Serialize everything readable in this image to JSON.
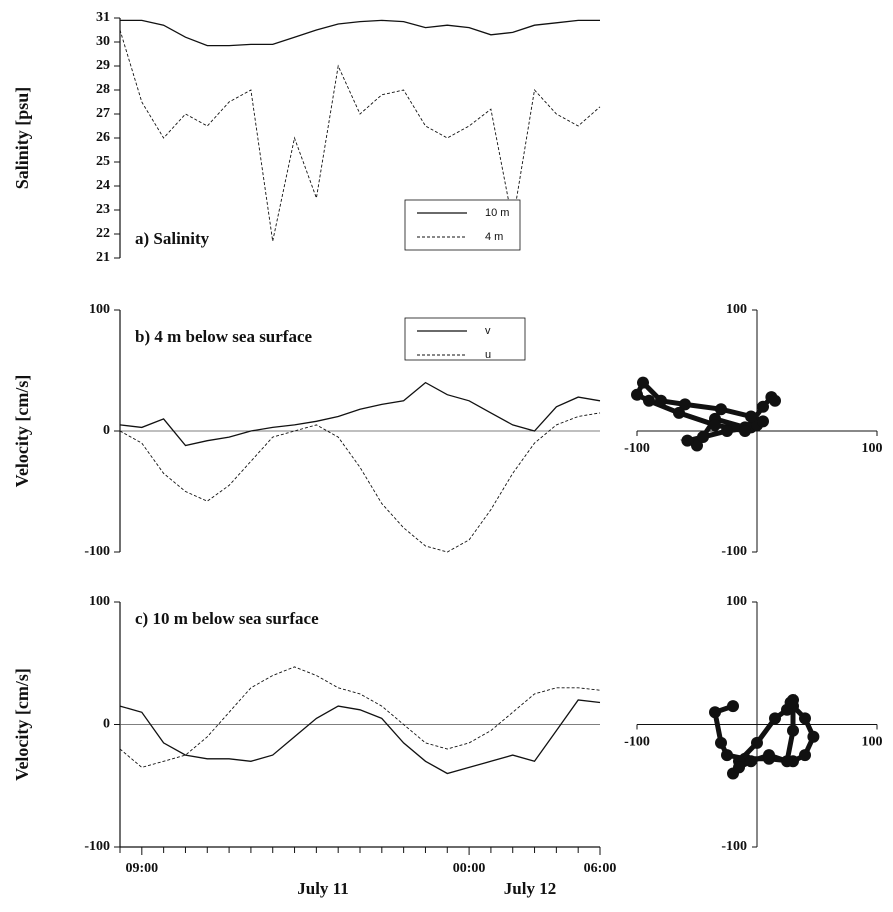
{
  "chart_data": [
    {
      "type": "line",
      "title": "a) Salinity",
      "ylabel": "Salinity [psu]",
      "x": [
        8,
        9,
        10,
        11,
        12,
        13,
        14,
        15,
        16,
        17,
        18,
        19,
        20,
        21,
        22,
        23,
        24,
        25,
        26,
        27,
        28,
        29,
        30
      ],
      "xlim": [
        8,
        30
      ],
      "ylim": [
        21,
        31
      ],
      "yticks": [
        21,
        22,
        23,
        24,
        25,
        26,
        27,
        28,
        29,
        30,
        31
      ],
      "series": [
        {
          "name": "10 m",
          "color": "#111111",
          "dash": false,
          "values": [
            30.9,
            30.9,
            30.7,
            30.2,
            29.85,
            29.85,
            29.9,
            29.9,
            30.2,
            30.5,
            30.75,
            30.85,
            30.9,
            30.85,
            30.6,
            30.7,
            30.6,
            30.3,
            30.4,
            30.7,
            30.8,
            30.9,
            30.9
          ]
        },
        {
          "name": "4 m",
          "color": "#111111",
          "dash": true,
          "values": [
            30.5,
            27.5,
            26,
            27,
            26.5,
            27.5,
            28,
            21.7,
            26,
            23.5,
            29,
            27,
            27.8,
            28,
            26.5,
            26,
            26.5,
            27.2,
            22.5,
            28,
            27,
            26.5,
            27.3
          ]
        }
      ]
    },
    {
      "type": "line",
      "title": "b) 4 m below sea surface",
      "ylabel": "Velocity [cm/s]",
      "x": [
        8,
        9,
        10,
        11,
        12,
        13,
        14,
        15,
        16,
        17,
        18,
        19,
        20,
        21,
        22,
        23,
        24,
        25,
        26,
        27,
        28,
        29,
        30
      ],
      "xlim": [
        8,
        30
      ],
      "ylim": [
        -100,
        100
      ],
      "yticks": [
        -100,
        0,
        100
      ],
      "zero_line": true,
      "series": [
        {
          "name": "v",
          "color": "#111111",
          "dash": false,
          "values": [
            5,
            3,
            10,
            -12,
            -8,
            -5,
            0,
            3,
            5,
            8,
            12,
            18,
            22,
            25,
            40,
            30,
            25,
            15,
            5,
            0,
            20,
            28,
            25
          ]
        },
        {
          "name": "u",
          "color": "#111111",
          "dash": true,
          "values": [
            0,
            -10,
            -35,
            -50,
            -58,
            -45,
            -25,
            -5,
            0,
            5,
            -5,
            -30,
            -60,
            -80,
            -95,
            -100,
            -90,
            -65,
            -35,
            -10,
            5,
            12,
            15
          ]
        }
      ],
      "hodograph": {
        "xlim": [
          -100,
          100
        ],
        "ylim": [
          -100,
          100
        ],
        "xticks": [
          -100,
          100
        ],
        "yticks": [
          -100,
          100
        ]
      }
    },
    {
      "type": "line",
      "title": "c) 10 m below sea surface",
      "ylabel": "Velocity [cm/s]",
      "x": [
        8,
        9,
        10,
        11,
        12,
        13,
        14,
        15,
        16,
        17,
        18,
        19,
        20,
        21,
        22,
        23,
        24,
        25,
        26,
        27,
        28,
        29,
        30
      ],
      "xlim": [
        8,
        30
      ],
      "ylim": [
        -100,
        100
      ],
      "yticks": [
        -100,
        0,
        100
      ],
      "zero_line": true,
      "xticks": [
        {
          "value": 9,
          "label": "09:00"
        },
        {
          "value": 24,
          "label": "00:00"
        },
        {
          "value": 30,
          "label": "06:00"
        }
      ],
      "xminorticks": [
        8,
        10,
        11,
        12,
        13,
        14,
        15,
        16,
        17,
        18,
        19,
        20,
        21,
        22,
        23,
        25,
        26,
        27,
        28,
        29
      ],
      "date_labels": [
        "July 11",
        "July 12"
      ],
      "series": [
        {
          "name": "v",
          "color": "#111111",
          "dash": false,
          "values": [
            15,
            10,
            -15,
            -25,
            -28,
            -28,
            -30,
            -25,
            -10,
            5,
            15,
            12,
            5,
            -15,
            -30,
            -40,
            -35,
            -30,
            -25,
            -30,
            -5,
            20,
            18
          ]
        },
        {
          "name": "u",
          "color": "#111111",
          "dash": true,
          "values": [
            -20,
            -35,
            -30,
            -25,
            -10,
            10,
            30,
            40,
            47,
            40,
            30,
            25,
            15,
            0,
            -15,
            -20,
            -15,
            -5,
            10,
            25,
            30,
            30,
            28
          ]
        }
      ],
      "hodograph": {
        "xlim": [
          -100,
          100
        ],
        "ylim": [
          -100,
          100
        ],
        "xticks": [
          -100,
          100
        ],
        "yticks": [
          -100,
          100
        ]
      }
    }
  ]
}
